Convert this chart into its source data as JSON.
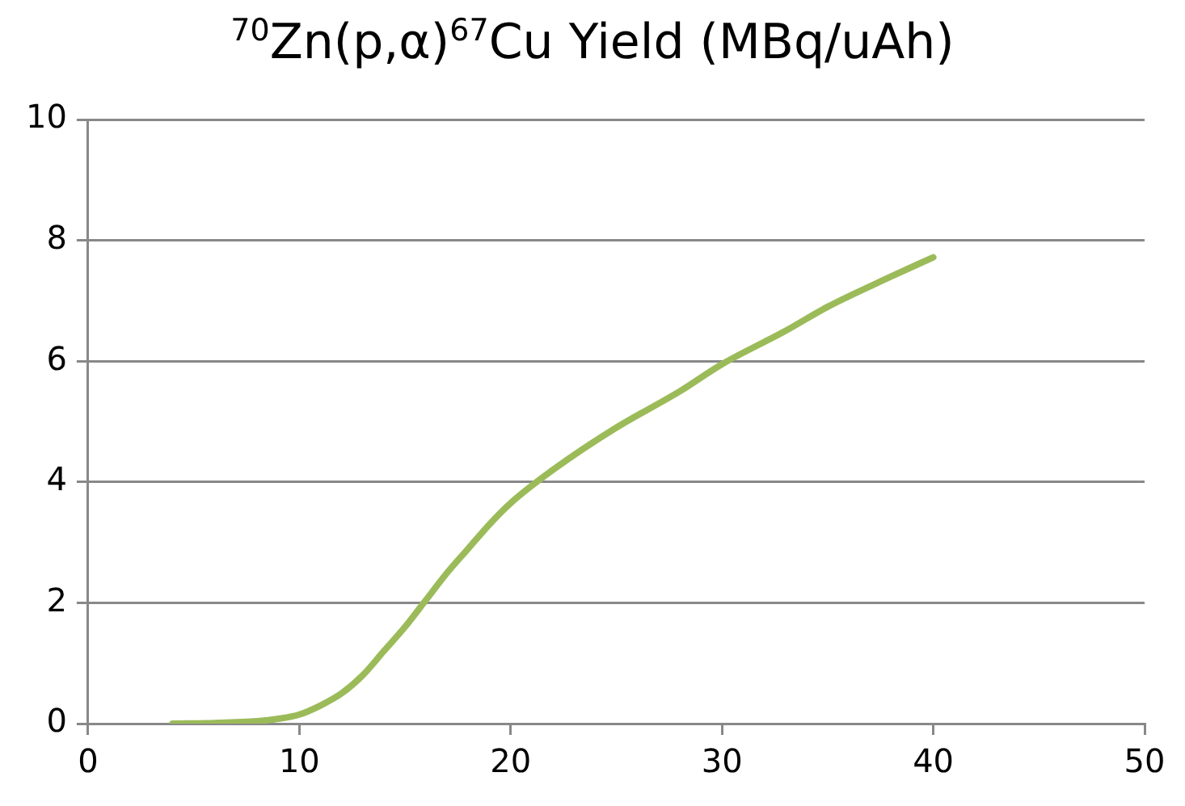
{
  "chart_data": {
    "type": "line",
    "title": "$^{70}$Zn(p,α)$^{67}$Cu Yield (MBq/uAh)",
    "x": [
      4,
      6,
      8,
      9,
      10,
      11,
      12,
      13,
      14,
      15,
      16,
      17,
      18,
      19,
      20,
      22,
      25,
      28,
      30,
      33,
      35,
      38,
      40
    ],
    "series": [
      {
        "color": "#9bbb59",
        "values": [
          0,
          0.01,
          0.04,
          0.08,
          0.15,
          0.3,
          0.5,
          0.8,
          1.2,
          1.6,
          2.05,
          2.5,
          2.9,
          3.3,
          3.65,
          4.2,
          4.9,
          5.5,
          5.95,
          6.5,
          6.9,
          7.4,
          7.72
        ]
      }
    ],
    "xlim": [
      0,
      50
    ],
    "xticks": [
      0,
      10,
      20,
      30,
      40,
      50
    ],
    "ylim": [
      0,
      10
    ],
    "yticks": [
      0,
      2,
      4,
      6,
      8,
      10
    ],
    "grid": "y",
    "legend": false,
    "marker": "none",
    "line_style": "solid"
  }
}
